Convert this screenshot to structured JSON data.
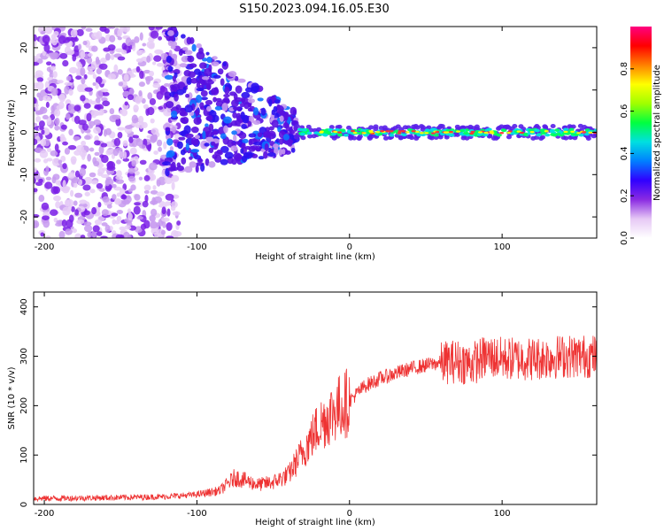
{
  "title": "S150.2023.094.16.05.E30",
  "chart_data": [
    {
      "type": "heatmap",
      "xlabel": "Height of straight line (km)",
      "ylabel": "Frequency (Hz)",
      "xlim": [
        -207,
        162
      ],
      "ylim": [
        -25,
        25
      ],
      "xticks": [
        -200,
        -100,
        0,
        100
      ],
      "yticks": [
        -20,
        -10,
        0,
        10,
        20
      ],
      "colorbar": {
        "label": "Normalized spectral amplitude",
        "range": [
          0,
          1
        ],
        "ticks": [
          0.0,
          0.2,
          0.4,
          0.6,
          0.8
        ],
        "colors": [
          "#ffffff",
          "#e6c8f5",
          "#8a2be2",
          "#3000ff",
          "#0080ff",
          "#00e0e0",
          "#00ff40",
          "#a0ff00",
          "#ffff00",
          "#ff8000",
          "#ff0000",
          "#ff0080"
        ]
      },
      "description_regions": [
        {
          "x_range": [
            -207,
            -120
          ],
          "freq_range": [
            -25,
            25
          ],
          "amplitude": 0.05
        },
        {
          "x_range": [
            -120,
            -40
          ],
          "freq_range": [
            -15,
            15
          ],
          "amplitude": 0.1
        },
        {
          "x_range": [
            -35,
            162
          ],
          "freq_range": [
            -2,
            2
          ],
          "amplitude": 0.6
        }
      ]
    },
    {
      "type": "line",
      "xlabel": "Height of straight line (km)",
      "ylabel": "SNR (10 * v/v)",
      "xlim": [
        -207,
        162
      ],
      "ylim": [
        0,
        430
      ],
      "xticks": [
        -200,
        -100,
        0,
        100
      ],
      "yticks": [
        0,
        100,
        200,
        300,
        400
      ],
      "color": "#ee3333",
      "envelope": {
        "x": [
          -207,
          -150,
          -120,
          -100,
          -85,
          -75,
          -60,
          -50,
          -40,
          -30,
          -20,
          -10,
          0,
          10,
          20,
          40,
          55,
          70,
          80,
          90,
          100,
          120,
          140,
          162
        ],
        "y": [
          12,
          14,
          16,
          20,
          28,
          55,
          40,
          45,
          60,
          110,
          160,
          190,
          210,
          240,
          255,
          275,
          285,
          290,
          285,
          300,
          295,
          295,
          300,
          300
        ]
      }
    }
  ]
}
